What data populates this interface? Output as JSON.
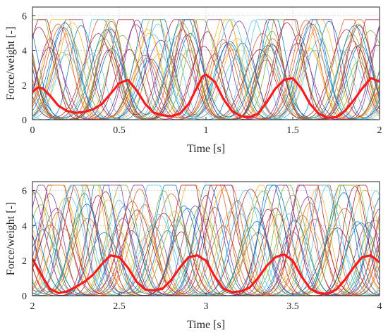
{
  "chart_data": [
    {
      "type": "line",
      "xlabel": "Time [s]",
      "ylabel": "Force/weight [-]",
      "xlim": [
        0,
        2
      ],
      "ylim": [
        0,
        6.5
      ],
      "xticks": [
        "0",
        "0.5",
        "1",
        "1.5",
        "2"
      ],
      "xtick_values": [
        0,
        0.5,
        1,
        1.5,
        2
      ],
      "yticks": [
        "0",
        "2",
        "4",
        "6"
      ],
      "ytick_values": [
        0,
        2,
        4,
        6
      ],
      "grid": true,
      "mean_series": {
        "color": "#ff1a1a",
        "x": [
          0,
          0.03,
          0.06,
          0.1,
          0.15,
          0.2,
          0.25,
          0.3,
          0.35,
          0.4,
          0.45,
          0.5,
          0.55,
          0.6,
          0.65,
          0.7,
          0.75,
          0.8,
          0.85,
          0.9,
          0.95,
          0.98,
          1.0,
          1.05,
          1.1,
          1.15,
          1.2,
          1.25,
          1.3,
          1.35,
          1.4,
          1.45,
          1.5,
          1.55,
          1.6,
          1.65,
          1.7,
          1.75,
          1.8,
          1.85,
          1.9,
          1.95,
          2.0
        ],
        "y": [
          1.6,
          1.85,
          1.8,
          1.4,
          0.8,
          0.5,
          0.4,
          0.45,
          0.6,
          0.9,
          1.5,
          2.1,
          2.3,
          1.7,
          0.9,
          0.4,
          0.25,
          0.2,
          0.35,
          0.9,
          1.9,
          2.5,
          2.6,
          2.2,
          1.2,
          0.5,
          0.2,
          0.15,
          0.35,
          1.0,
          1.8,
          2.3,
          2.4,
          1.8,
          0.9,
          0.35,
          0.1,
          0.15,
          0.5,
          1.1,
          1.8,
          2.4,
          2.2
        ]
      },
      "trials": {
        "count": 30,
        "colors": [
          "#0072bd",
          "#d95319",
          "#edb120",
          "#7e2f8e",
          "#77ac30",
          "#4dbeee",
          "#a2142f"
        ],
        "peak_centers": [
          0.05,
          0.55,
          1.0,
          1.48,
          1.98
        ],
        "peak_max": 5.5
      }
    },
    {
      "type": "line",
      "xlabel": "Time [s]",
      "ylabel": "Force/weight [-]",
      "xlim": [
        2,
        4
      ],
      "ylim": [
        0,
        6.5
      ],
      "xticks": [
        "2",
        "2.5",
        "3",
        "3.5",
        "4"
      ],
      "xtick_values": [
        2,
        2.5,
        3,
        3.5,
        4
      ],
      "yticks": [
        "0",
        "2",
        "4",
        "6"
      ],
      "ytick_values": [
        0,
        2,
        4,
        6
      ],
      "grid": true,
      "mean_series": {
        "color": "#ff1a1a",
        "x": [
          2.0,
          2.05,
          2.1,
          2.15,
          2.2,
          2.25,
          2.3,
          2.35,
          2.4,
          2.45,
          2.5,
          2.55,
          2.6,
          2.65,
          2.7,
          2.75,
          2.8,
          2.85,
          2.9,
          2.95,
          3.0,
          3.05,
          3.1,
          3.15,
          3.2,
          3.25,
          3.3,
          3.35,
          3.4,
          3.45,
          3.5,
          3.55,
          3.6,
          3.65,
          3.7,
          3.75,
          3.8,
          3.85,
          3.9,
          3.95,
          4.0
        ],
        "y": [
          2.1,
          1.2,
          0.4,
          0.15,
          0.25,
          0.5,
          0.8,
          1.2,
          1.8,
          2.3,
          2.2,
          1.6,
          0.8,
          0.35,
          0.3,
          0.4,
          0.9,
          1.6,
          2.2,
          2.3,
          2.0,
          1.1,
          0.4,
          0.2,
          0.25,
          0.45,
          1.0,
          1.7,
          2.2,
          2.35,
          2.0,
          1.1,
          0.4,
          0.15,
          0.1,
          0.35,
          0.9,
          1.6,
          2.2,
          2.3,
          1.9
        ]
      },
      "trials": {
        "count": 30,
        "colors": [
          "#0072bd",
          "#d95319",
          "#edb120",
          "#7e2f8e",
          "#77ac30",
          "#4dbeee",
          "#a2142f"
        ],
        "peak_centers": [
          2.0,
          2.47,
          2.95,
          3.45,
          3.95
        ],
        "peak_max": 6.0
      }
    }
  ]
}
